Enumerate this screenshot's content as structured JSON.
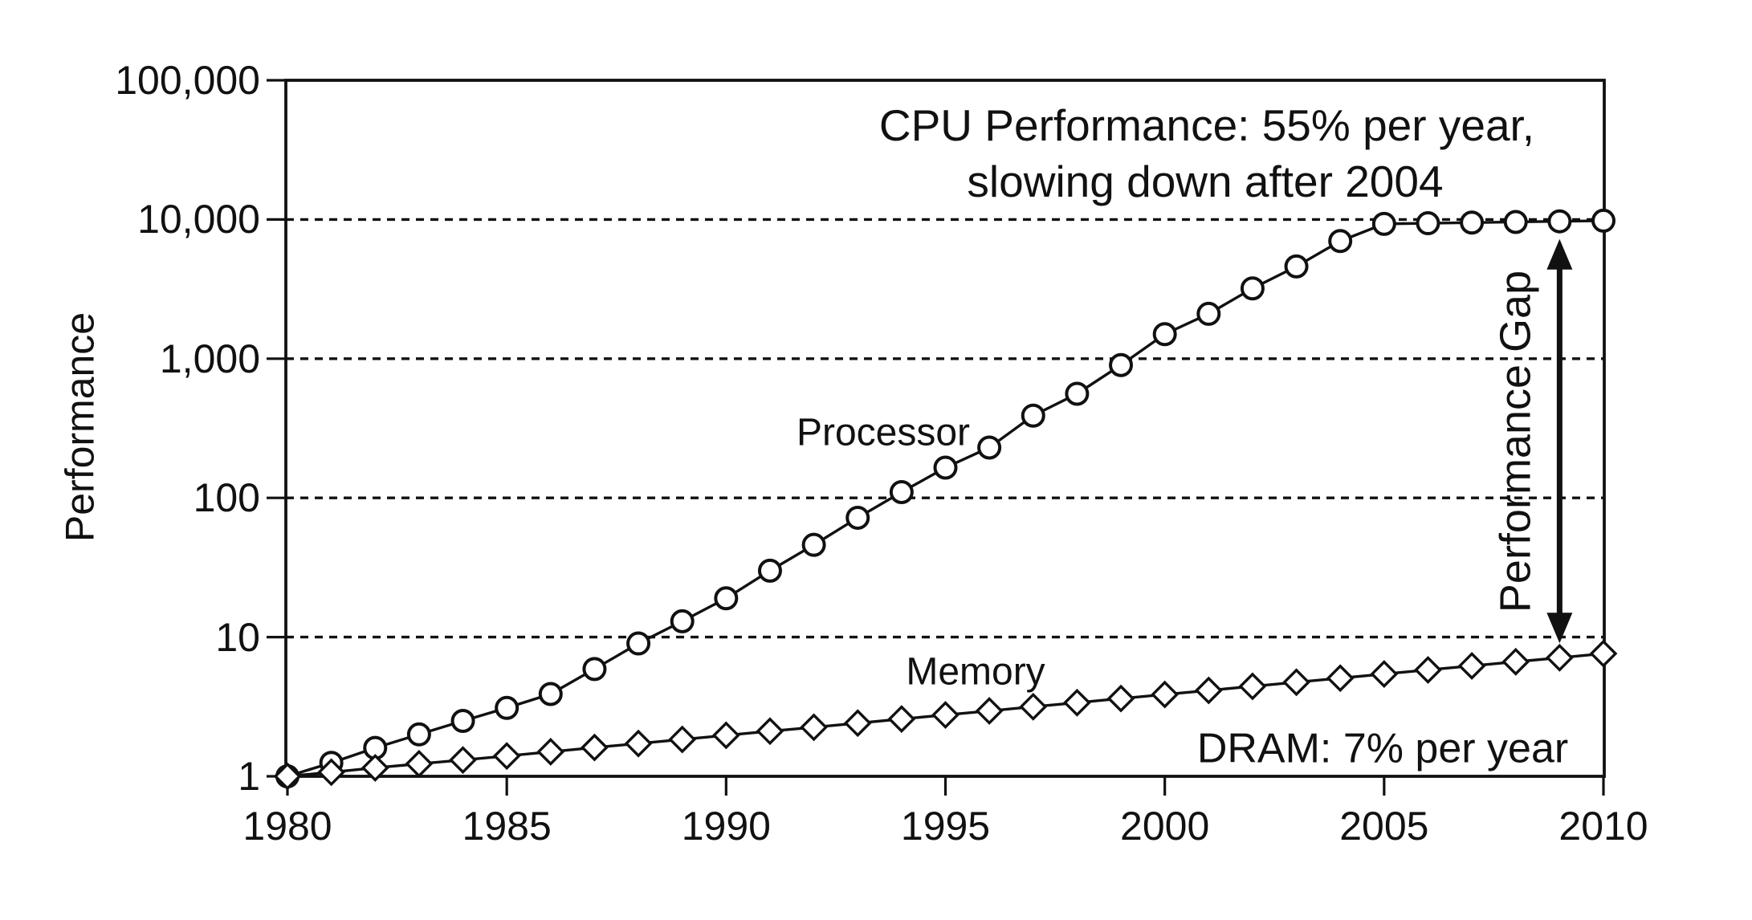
{
  "figure": {
    "background": "#ffffff",
    "ink": "#111111"
  },
  "chart_data": {
    "type": "line",
    "title": "",
    "ylabel": "Performance",
    "xlabel": "",
    "y_scale": "log10",
    "ylim": [
      1,
      100000
    ],
    "xlim": [
      1980,
      2010
    ],
    "grid": "horizontal dashed lines at powers of 10",
    "legend_position": "inline labels next to each series",
    "y_tick_labels": [
      "100,000",
      "10,000",
      "1,000",
      "100",
      "10",
      "1"
    ],
    "y_tick_values": [
      100000,
      10000,
      1000,
      100,
      10,
      1
    ],
    "x_tick_values": [
      1980,
      1985,
      1990,
      1995,
      2000,
      2005,
      2010
    ],
    "x": [
      1980,
      1981,
      1982,
      1983,
      1984,
      1985,
      1986,
      1987,
      1988,
      1989,
      1990,
      1991,
      1992,
      1993,
      1994,
      1995,
      1996,
      1997,
      1998,
      1999,
      2000,
      2001,
      2002,
      2003,
      2004,
      2005,
      2006,
      2007,
      2008,
      2009,
      2010
    ],
    "series": [
      {
        "name": "Processor",
        "marker": "circle",
        "values": [
          1,
          1.25,
          1.6,
          2,
          2.5,
          3.1,
          3.9,
          5.9,
          9,
          13,
          19,
          30,
          46,
          72,
          110,
          165,
          230,
          390,
          560,
          900,
          1500,
          2100,
          3200,
          4600,
          7000,
          9300,
          9400,
          9500,
          9600,
          9700,
          9800
        ]
      },
      {
        "name": "Memory",
        "marker": "diamond",
        "values": [
          1,
          1.07,
          1.15,
          1.23,
          1.31,
          1.4,
          1.5,
          1.61,
          1.72,
          1.84,
          1.97,
          2.11,
          2.25,
          2.41,
          2.58,
          2.76,
          2.95,
          3.16,
          3.38,
          3.62,
          3.87,
          4.14,
          4.43,
          4.74,
          5.07,
          5.43,
          5.81,
          6.21,
          6.65,
          7.11,
          7.61
        ]
      }
    ],
    "annotations": {
      "cpu_title_line1": "CPU Performance: 55% per year,",
      "cpu_title_line2": "slowing down after 2004",
      "dram_rate": "DRAM: 7% per year",
      "performance_gap": "Performance Gap"
    },
    "gap_arrow": {
      "x_year": 2009,
      "from_series": "Processor",
      "to_series": "Memory"
    }
  }
}
